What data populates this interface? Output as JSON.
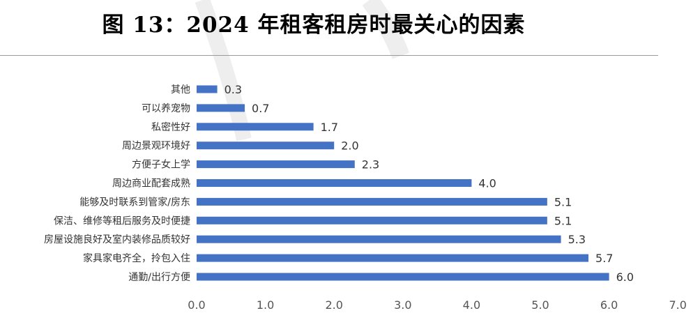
{
  "figure": {
    "title": "图 13：2024 年租客租房时最关心的因素"
  },
  "chart_data": {
    "type": "bar",
    "orientation": "horizontal",
    "title": "图 13：2024 年租客租房时最关心的因素",
    "xlabel": "",
    "ylabel": "",
    "xlim": [
      0,
      7
    ],
    "xticks": [
      "0.0",
      "1.0",
      "2.0",
      "3.0",
      "4.0",
      "5.0",
      "6.0",
      "7.0"
    ],
    "grid": false,
    "legend": "none",
    "bar_color": "#4472C4",
    "categories": [
      "其他",
      "可以养宠物",
      "私密性好",
      "周边景观环境好",
      "方便子女上学",
      "周边商业配套成熟",
      "能够及时联系到管家/房东",
      "保洁、维修等租后服务及时便捷",
      "房屋设施良好及室内装修品质较好",
      "家具家电齐全，拎包入住",
      "通勤/出行方便"
    ],
    "values": [
      0.3,
      0.7,
      1.7,
      2.0,
      2.3,
      4.0,
      5.1,
      5.1,
      5.3,
      5.7,
      6.0
    ],
    "value_labels": [
      "0.3",
      "0.7",
      "1.7",
      "2.0",
      "2.3",
      "4.0",
      "5.1",
      "5.1",
      "5.3",
      "5.7",
      "6.0"
    ]
  }
}
